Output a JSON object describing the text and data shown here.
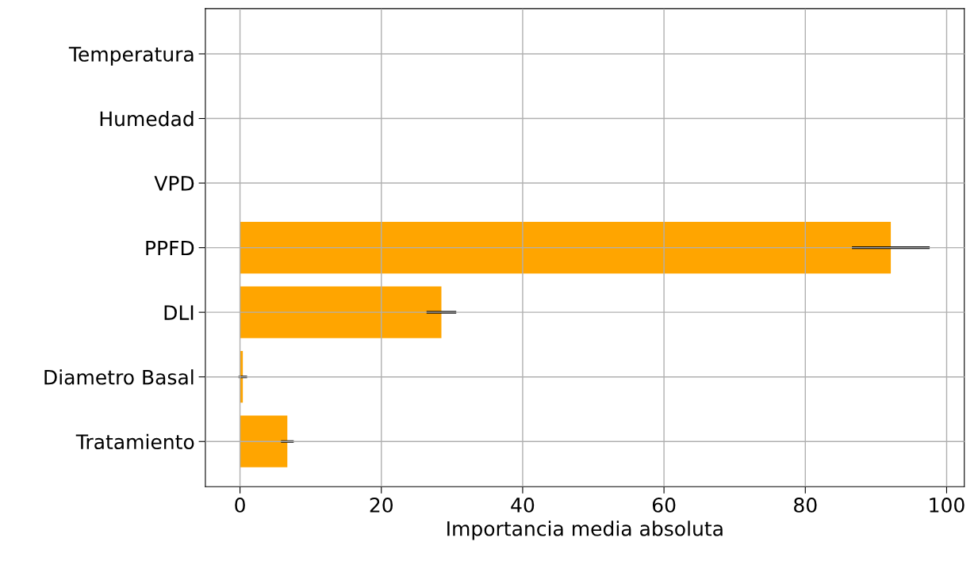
{
  "chart_data": {
    "type": "bar",
    "orientation": "horizontal",
    "xlabel": "Importancia media absoluta",
    "categories": [
      "Temperatura",
      "Humedad",
      "VPD",
      "PPFD",
      "DLI",
      "Diametro Basal",
      "Tratamiento"
    ],
    "values": [
      0,
      0,
      0,
      92.1,
      28.5,
      0.4,
      6.7
    ],
    "errors": [
      null,
      null,
      null,
      5.5,
      2.1,
      0.6,
      0.9
    ],
    "color": "#ffa500",
    "xlim": [
      -4.9,
      102.5
    ],
    "xticks": [
      0,
      20,
      40,
      60,
      80,
      100
    ],
    "grid": true
  }
}
